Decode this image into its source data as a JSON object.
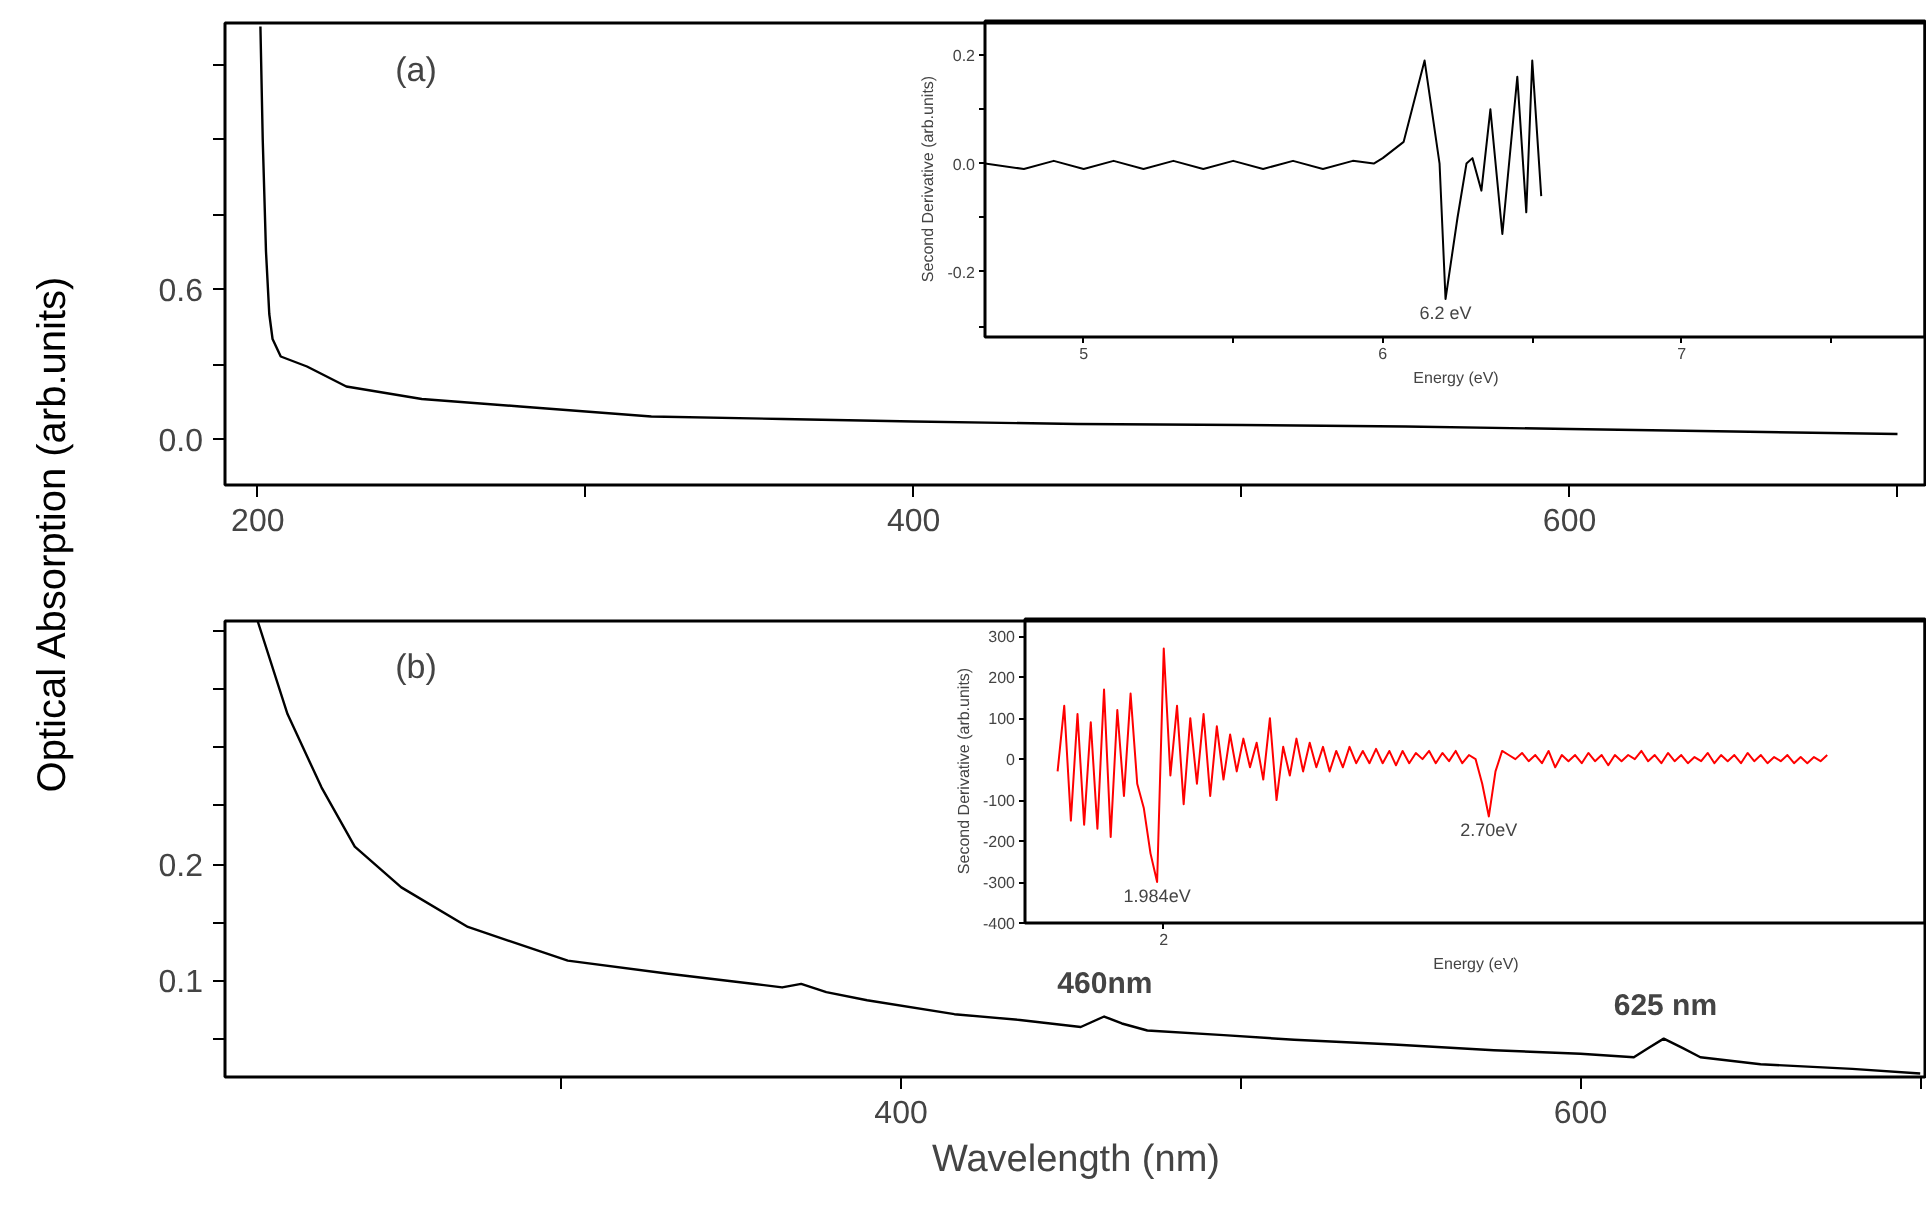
{
  "chart_data": [
    {
      "type": "line",
      "ylabel": "Optical Absorption (arb.units)",
      "xlim": [
        190,
        709
      ],
      "ylim": [
        -0.184,
        1.664
      ],
      "xticks": [
        200,
        {
          "value": 300,
          "label": null
        },
        400,
        {
          "value": 500,
          "label": null
        },
        600,
        {
          "value": 700,
          "label": null
        }
      ],
      "yticks": [
        {
          "value": 0,
          "label": "0.0"
        },
        {
          "value": 0.3,
          "label": null
        },
        {
          "value": 0.6,
          "label": "0.6"
        },
        {
          "value": 0.9,
          "label": null
        },
        {
          "value": 1.2,
          "label": null
        },
        {
          "value": 1.5,
          "label": null
        }
      ],
      "grid": false,
      "annotations": [
        "(a)"
      ],
      "series": [
        {
          "color": "#000000",
          "x": [
            200.8,
            201.5,
            202.5,
            203.5,
            204.5,
            207,
            215,
            227,
            250,
            280,
            320,
            360,
            400,
            450,
            500,
            550,
            600,
            650,
            700
          ],
          "values": [
            1.65,
            1.2,
            0.75,
            0.5,
            0.4,
            0.33,
            0.29,
            0.21,
            0.16,
            0.13,
            0.09,
            0.08,
            0.07,
            0.06,
            0.056,
            0.05,
            0.04,
            0.03,
            0.02
          ]
        }
      ]
    },
    {
      "type": "line",
      "xlabel": "Energy (eV)",
      "ylabel": "Second Derivative (arb.units)",
      "xlim": [
        4.67,
        7.82
      ],
      "ylim": [
        -0.32,
        0.263
      ],
      "xticks": [
        5,
        {
          "value": 5.5,
          "label": null
        },
        6,
        {
          "value": 6.5,
          "label": null
        },
        7,
        {
          "value": 7.5,
          "label": null
        }
      ],
      "yticks": [
        {
          "value": -0.3,
          "label": null
        },
        {
          "value": -0.2,
          "label": "-0.2"
        },
        {
          "value": -0.1,
          "label": null
        },
        {
          "value": 0,
          "label": "0.0"
        },
        {
          "value": 0.1,
          "label": null
        },
        {
          "value": 0.2,
          "label": "0.2"
        }
      ],
      "grid": false,
      "annotations": [
        {
          "text": "6.2 eV",
          "x": 6.21,
          "y": -0.25
        }
      ],
      "series": [
        {
          "color": "#000000",
          "x": [
            4.67,
            4.8,
            4.9,
            5.0,
            5.1,
            5.2,
            5.3,
            5.4,
            5.5,
            5.6,
            5.7,
            5.8,
            5.9,
            5.97,
            6.0,
            6.07,
            6.14,
            6.19,
            6.21,
            6.25,
            6.28,
            6.3,
            6.33,
            6.36,
            6.4,
            6.45,
            6.48,
            6.5,
            6.53
          ],
          "values": [
            0,
            -0.01,
            0.005,
            -0.01,
            0.005,
            -0.01,
            0.005,
            -0.01,
            0.005,
            -0.01,
            0.005,
            -0.01,
            0.005,
            0.0,
            0.01,
            0.04,
            0.19,
            0.0,
            -0.25,
            -0.1,
            0.0,
            0.01,
            -0.05,
            0.1,
            -0.13,
            0.16,
            -0.09,
            0.19,
            -0.06
          ]
        }
      ]
    },
    {
      "type": "line",
      "xlabel": "Wavelength (nm)",
      "xlim": [
        201,
        702
      ],
      "ylim": [
        0.017,
        0.409
      ],
      "xticks": [
        {
          "value": 300,
          "label": null
        },
        400,
        {
          "value": 500,
          "label": null
        },
        600,
        {
          "value": 700,
          "label": null
        }
      ],
      "yticks": [
        {
          "value": 0.05,
          "label": null
        },
        {
          "value": 0.1,
          "label": "0.1"
        },
        {
          "value": 0.15,
          "label": null
        },
        {
          "value": 0.2,
          "label": "0.2"
        },
        {
          "value": 0.25,
          "label": null
        },
        {
          "value": 0.3,
          "label": null
        },
        {
          "value": 0.35,
          "label": null
        },
        {
          "value": 0.4,
          "label": null
        }
      ],
      "grid": false,
      "annotations": [
        "(b)",
        {
          "text": "460nm",
          "x": 460,
          "y": 0.069
        },
        {
          "text": "625 nm",
          "x": 625,
          "y": 0.05
        }
      ],
      "series": [
        {
          "color": "#000000",
          "x": [
            210.6,
            219.4,
            229.4,
            239.2,
            252.9,
            272.5,
            301.9,
            331,
            356.9,
            365,
            370.6,
            378,
            390,
            415.7,
            435,
            452.9,
            459.8,
            465,
            472.5,
            495,
            515.7,
            545,
            574.5,
            600,
            615.7,
            620,
            624.5,
            630,
            635.3,
            653,
            680,
            700
          ],
          "values": [
            0.409,
            0.329,
            0.266,
            0.215,
            0.18,
            0.146,
            0.117,
            0.106,
            0.097,
            0.094,
            0.097,
            0.09,
            0.083,
            0.071,
            0.066,
            0.06,
            0.069,
            0.063,
            0.057,
            0.053,
            0.049,
            0.045,
            0.04,
            0.037,
            0.034,
            0.042,
            0.05,
            0.042,
            0.034,
            0.028,
            0.024,
            0.02
          ]
        }
      ]
    },
    {
      "type": "line",
      "xlabel": "Energy (eV)",
      "ylabel": "Second Derivative (arb.units)",
      "ylim": [
        -400,
        342
      ],
      "categories": [
        null,
        null,
        null,
        null,
        null,
        null,
        null,
        null,
        null,
        null,
        null,
        null,
        null,
        null,
        null,
        null,
        "2",
        null,
        null,
        null,
        null,
        null,
        null,
        null,
        null,
        null,
        null,
        null,
        null,
        null,
        null,
        null,
        null,
        null,
        null,
        null,
        null,
        null,
        null,
        null,
        null,
        null,
        null,
        null,
        null,
        null,
        null,
        null,
        null,
        null,
        null,
        null,
        null,
        null,
        null,
        null,
        null,
        null,
        null,
        null,
        null,
        null,
        null,
        null,
        null,
        null,
        null,
        null,
        null,
        null,
        null,
        null,
        null,
        null,
        null,
        null,
        null,
        null,
        null,
        null,
        null,
        null,
        null,
        null,
        null,
        null,
        null,
        null,
        null,
        null,
        null,
        null,
        null,
        null,
        null,
        null,
        null,
        null,
        null,
        null,
        null,
        null,
        null,
        null,
        null,
        null,
        null,
        null,
        null,
        null,
        null,
        null,
        null,
        null,
        null,
        null,
        null
      ],
      "yticks": [
        -400,
        -300,
        -200,
        -100,
        0,
        100,
        200,
        300
      ],
      "grid": false,
      "annotations": [
        {
          "text": "1.984eV",
          "y": -300
        },
        {
          "text": "2.70eV",
          "y": -140
        }
      ],
      "series": [
        {
          "color": "#ff0000",
          "values": [
            -30,
            130,
            -150,
            110,
            -160,
            90,
            -170,
            170,
            -190,
            120,
            -90,
            160,
            -60,
            -120,
            -230,
            -300,
            270,
            -40,
            130,
            -110,
            100,
            -60,
            110,
            -90,
            80,
            -50,
            60,
            -30,
            50,
            -20,
            40,
            -50,
            100,
            -100,
            30,
            -40,
            50,
            -30,
            40,
            -20,
            30,
            -30,
            20,
            -20,
            30,
            -10,
            20,
            -10,
            25,
            -10,
            20,
            -15,
            20,
            -10,
            15,
            0,
            20,
            -10,
            15,
            -5,
            20,
            -10,
            10,
            0,
            -60,
            -140,
            -30,
            20,
            10,
            0,
            15,
            -5,
            10,
            -10,
            20,
            -20,
            10,
            -5,
            10,
            -10,
            15,
            -5,
            10,
            -15,
            10,
            -5,
            10,
            0,
            20,
            -5,
            10,
            -10,
            15,
            -5,
            10,
            -10,
            5,
            -5,
            15,
            -10,
            10,
            -5,
            10,
            -10,
            15,
            -5,
            10,
            -10,
            5,
            -5,
            10,
            -10,
            5,
            -10,
            5,
            -5,
            10
          ]
        }
      ]
    }
  ]
}
